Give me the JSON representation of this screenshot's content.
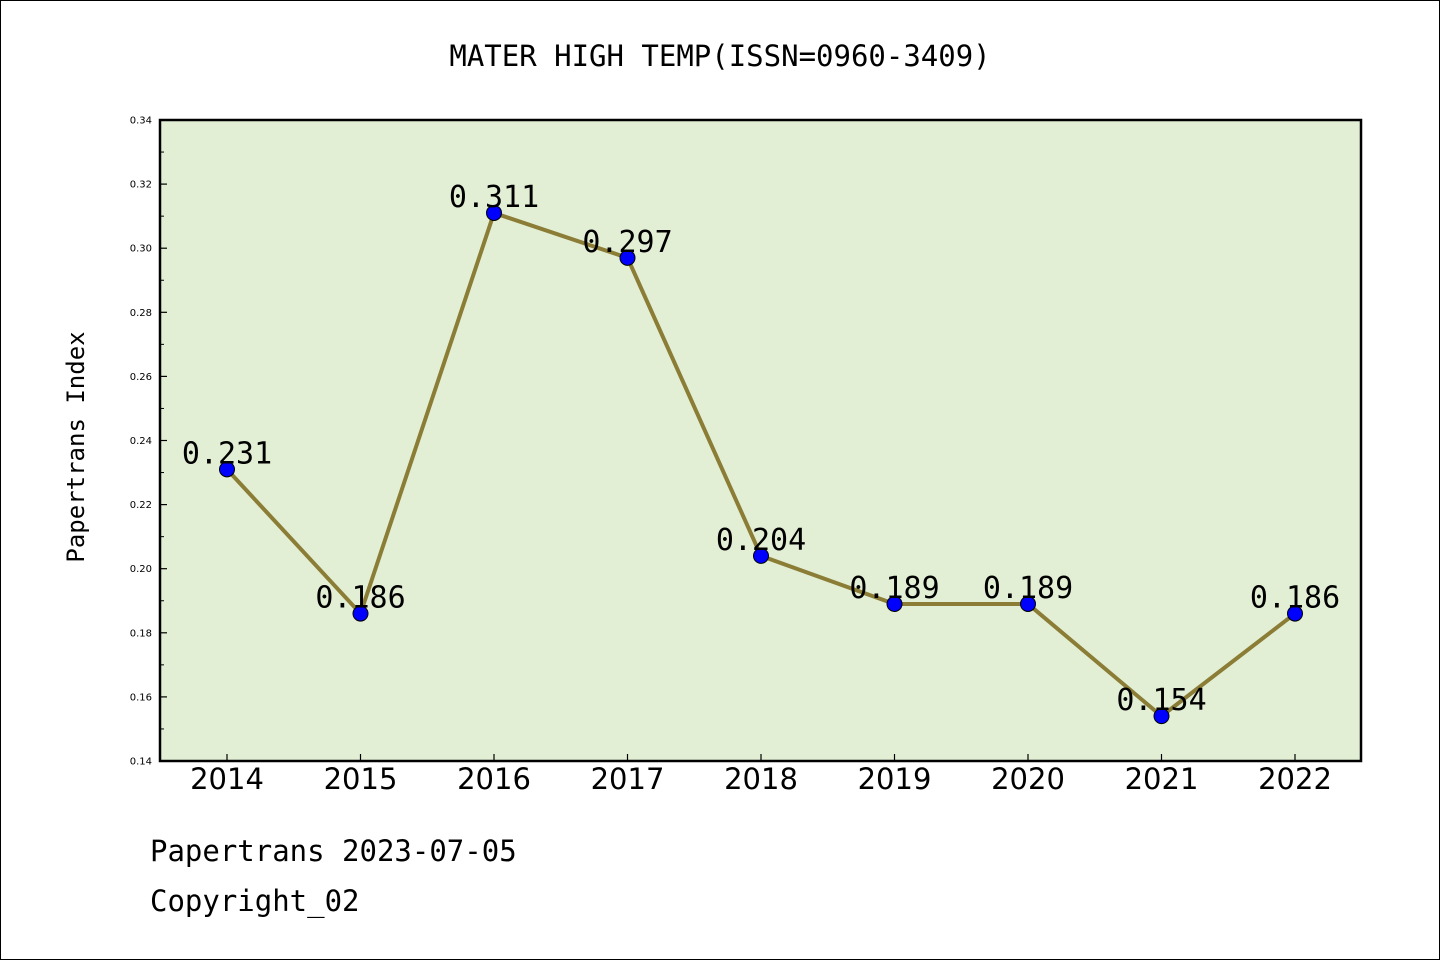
{
  "chart_data": {
    "type": "line",
    "title": "MATER HIGH TEMP(ISSN=0960-3409)",
    "xlabel": "",
    "ylabel": "Papertrans Index",
    "categories": [
      "2014",
      "2015",
      "2016",
      "2017",
      "2018",
      "2019",
      "2020",
      "2021",
      "2022"
    ],
    "values": [
      0.231,
      0.186,
      0.311,
      0.297,
      0.204,
      0.189,
      0.189,
      0.154,
      0.186
    ],
    "value_labels": [
      "0.231",
      "0.186",
      "0.311",
      "0.297",
      "0.204",
      "0.189",
      "0.189",
      "0.154",
      "0.186"
    ],
    "ylim": [
      0.14,
      0.34
    ],
    "yticks": [
      "0.14",
      "0.16",
      "0.18",
      "0.20",
      "0.22",
      "0.24",
      "0.26",
      "0.28",
      "0.30",
      "0.32",
      "0.34"
    ],
    "grid": false,
    "legend": "none",
    "colors": {
      "line": "#8b7d35",
      "marker": "#0000ff",
      "plot_background": "#e2efd5",
      "axes": "#000000"
    }
  },
  "footer": {
    "date_line": "Papertrans 2023-07-05",
    "copyright_line": "Copyright_02"
  }
}
